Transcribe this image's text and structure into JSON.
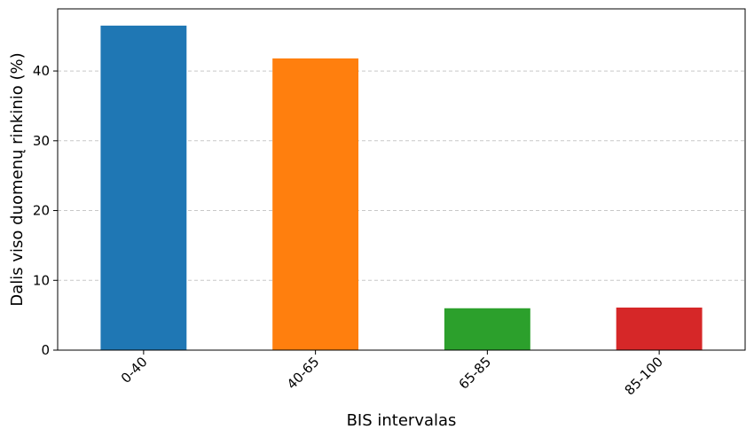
{
  "chart_data": {
    "type": "bar",
    "categories": [
      "0-40",
      "40-65",
      "65-85",
      "85-100"
    ],
    "values": [
      46.5,
      41.8,
      6.0,
      6.1
    ],
    "colors": [
      "#1f77b4",
      "#ff7f0e",
      "#2ca02c",
      "#d62728"
    ],
    "xlabel": "BIS intervalas",
    "ylabel": "Dalis viso duomenų rinkinio (%)",
    "ylim": [
      0,
      48.9
    ],
    "yticks": [
      0,
      10,
      20,
      30,
      40
    ],
    "ytick_labels": [
      "0",
      "10",
      "20",
      "30",
      "40"
    ],
    "grid": "y-dashed",
    "xtick_rotation": 45,
    "legend": "none"
  }
}
